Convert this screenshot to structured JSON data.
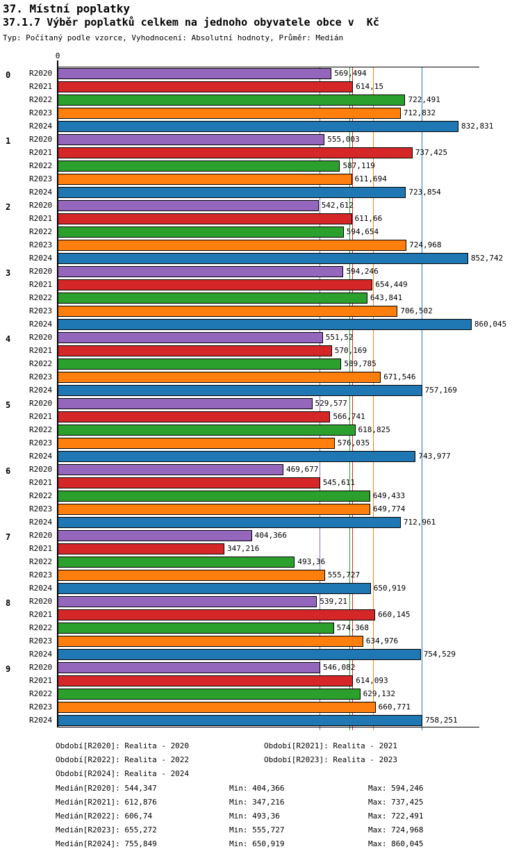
{
  "header": {
    "title": "37. Místní poplatky",
    "subtitle": "37.1.7 Výběr poplatků celkem na jednoho obyvatele obce v  Kč",
    "meta": "Typ: Počítaný podle vzorce, Vyhodnocení: Absolutní hodnoty, Průměr: Medián"
  },
  "chart_data": {
    "type": "bar",
    "orientation": "horizontal",
    "title": "37.1.7 Výběr poplatků celkem na jednoho obyvatele obce v Kč",
    "origin_tick_label": "0",
    "xlim": [
      0,
      876
    ],
    "grid": false,
    "series_names": [
      "R2020",
      "R2021",
      "R2022",
      "R2023",
      "R2024"
    ],
    "series_colors": [
      "#9467bd",
      "#d62728",
      "#2ca02c",
      "#ff7f0e",
      "#1f77b4"
    ],
    "categories": [
      "0",
      "1",
      "2",
      "3",
      "4",
      "5",
      "6",
      "7",
      "8",
      "9"
    ],
    "groups": [
      {
        "label": "0",
        "values": [
          569.494,
          614.15,
          722.491,
          712.832,
          832.831
        ],
        "value_labels": [
          "569,494",
          "614,15",
          "722,491",
          "712,832",
          "832,831"
        ]
      },
      {
        "label": "1",
        "values": [
          555.003,
          737.425,
          587.119,
          611.694,
          723.854
        ],
        "value_labels": [
          "555,003",
          "737,425",
          "587,119",
          "611,694",
          "723,854"
        ]
      },
      {
        "label": "2",
        "values": [
          542.612,
          611.66,
          594.654,
          724.968,
          852.742
        ],
        "value_labels": [
          "542,612",
          "611,66",
          "594,654",
          "724,968",
          "852,742"
        ]
      },
      {
        "label": "3",
        "values": [
          594.246,
          654.449,
          643.841,
          706.502,
          860.045
        ],
        "value_labels": [
          "594,246",
          "654,449",
          "643,841",
          "706,502",
          "860,045"
        ]
      },
      {
        "label": "4",
        "values": [
          551.52,
          570.169,
          589.785,
          671.546,
          757.169
        ],
        "value_labels": [
          "551,52",
          "570,169",
          "589,785",
          "671,546",
          "757,169"
        ]
      },
      {
        "label": "5",
        "values": [
          529.577,
          566.741,
          618.825,
          576.035,
          743.977
        ],
        "value_labels": [
          "529,577",
          "566,741",
          "618,825",
          "576,035",
          "743,977"
        ]
      },
      {
        "label": "6",
        "values": [
          469.677,
          545.611,
          649.433,
          649.774,
          712.961
        ],
        "value_labels": [
          "469,677",
          "545,611",
          "649,433",
          "649,774",
          "712,961"
        ]
      },
      {
        "label": "7",
        "values": [
          404.366,
          347.216,
          493.36,
          555.727,
          650.919
        ],
        "value_labels": [
          "404,366",
          "347,216",
          "493,36",
          "555,727",
          "650,919"
        ]
      },
      {
        "label": "8",
        "values": [
          539.21,
          660.145,
          574.368,
          634.976,
          754.529
        ],
        "value_labels": [
          "539,21",
          "660,145",
          "574,368",
          "634,976",
          "754,529"
        ]
      },
      {
        "label": "9",
        "values": [
          546.082,
          614.093,
          629.132,
          660.771,
          758.251
        ],
        "value_labels": [
          "546,082",
          "614,093",
          "629,132",
          "660,771",
          "758,251"
        ]
      }
    ],
    "median_lines": [
      {
        "series": "R2020",
        "value": 544.347,
        "label": "544,347",
        "color": "#9467bd"
      },
      {
        "series": "R2021",
        "value": 612.876,
        "label": "612,876",
        "color": "#d62728"
      },
      {
        "series": "R2022",
        "value": 606.74,
        "label": "606,74",
        "color": "#2ca02c"
      },
      {
        "series": "R2023",
        "value": 655.272,
        "label": "655,272",
        "color": "#ff7f0e"
      },
      {
        "series": "R2024",
        "value": 755.849,
        "label": "755,849",
        "color": "#1f77b4"
      }
    ],
    "legend_rows": [
      [
        "Období[R2020]: Realita - 2020",
        "Období[R2021]: Realita - 2021"
      ],
      [
        "Období[R2022]: Realita - 2022",
        "Období[R2023]: Realita - 2023"
      ],
      [
        "Období[R2024]: Realita - 2024"
      ]
    ],
    "stats_rows": [
      [
        "Medián[R2020]: 544,347",
        "Min: 404,366",
        "Max: 594,246"
      ],
      [
        "Medián[R2021]: 612,876",
        "Min: 347,216",
        "Max: 737,425"
      ],
      [
        "Medián[R2022]: 606,74",
        "Min: 493,36",
        "Max: 722,491"
      ],
      [
        "Medián[R2023]: 655,272",
        "Min: 555,727",
        "Max: 724,968"
      ],
      [
        "Medián[R2024]: 755,849",
        "Min: 650,919",
        "Max: 860,045"
      ]
    ]
  }
}
